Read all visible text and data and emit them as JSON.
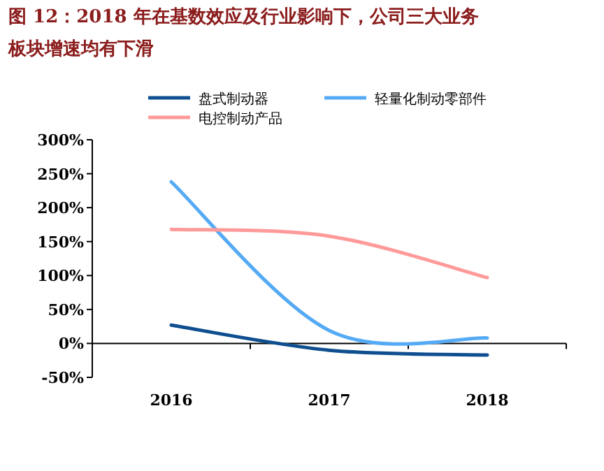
{
  "chart_data": {
    "type": "line",
    "title": "图 12：2018 年在基数效应及行业影响下，公司三大业务板块增速均有下滑",
    "categories": [
      "2016",
      "2017",
      "2018"
    ],
    "series": [
      {
        "name": "盘式制动器",
        "color": "#0f4f8f",
        "values": [
          27,
          -10,
          -17
        ]
      },
      {
        "name": "轻量化制动零部件",
        "color": "#55aaf5",
        "values": [
          238,
          19,
          8
        ]
      },
      {
        "name": "电控制动产品",
        "color": "#ff9a9a",
        "values": [
          168,
          158,
          97
        ]
      }
    ],
    "ylim": [
      -50,
      300
    ],
    "yticks": [
      {
        "value": -50,
        "label": "-50%"
      },
      {
        "value": 0,
        "label": "0%"
      },
      {
        "value": 50,
        "label": "50%"
      },
      {
        "value": 100,
        "label": "100%"
      },
      {
        "value": 150,
        "label": "150%"
      },
      {
        "value": 200,
        "label": "200%"
      },
      {
        "value": 250,
        "label": "250%"
      },
      {
        "value": 300,
        "label": "300%"
      }
    ],
    "legend": "top",
    "marker": "none",
    "line_style": "solid"
  }
}
